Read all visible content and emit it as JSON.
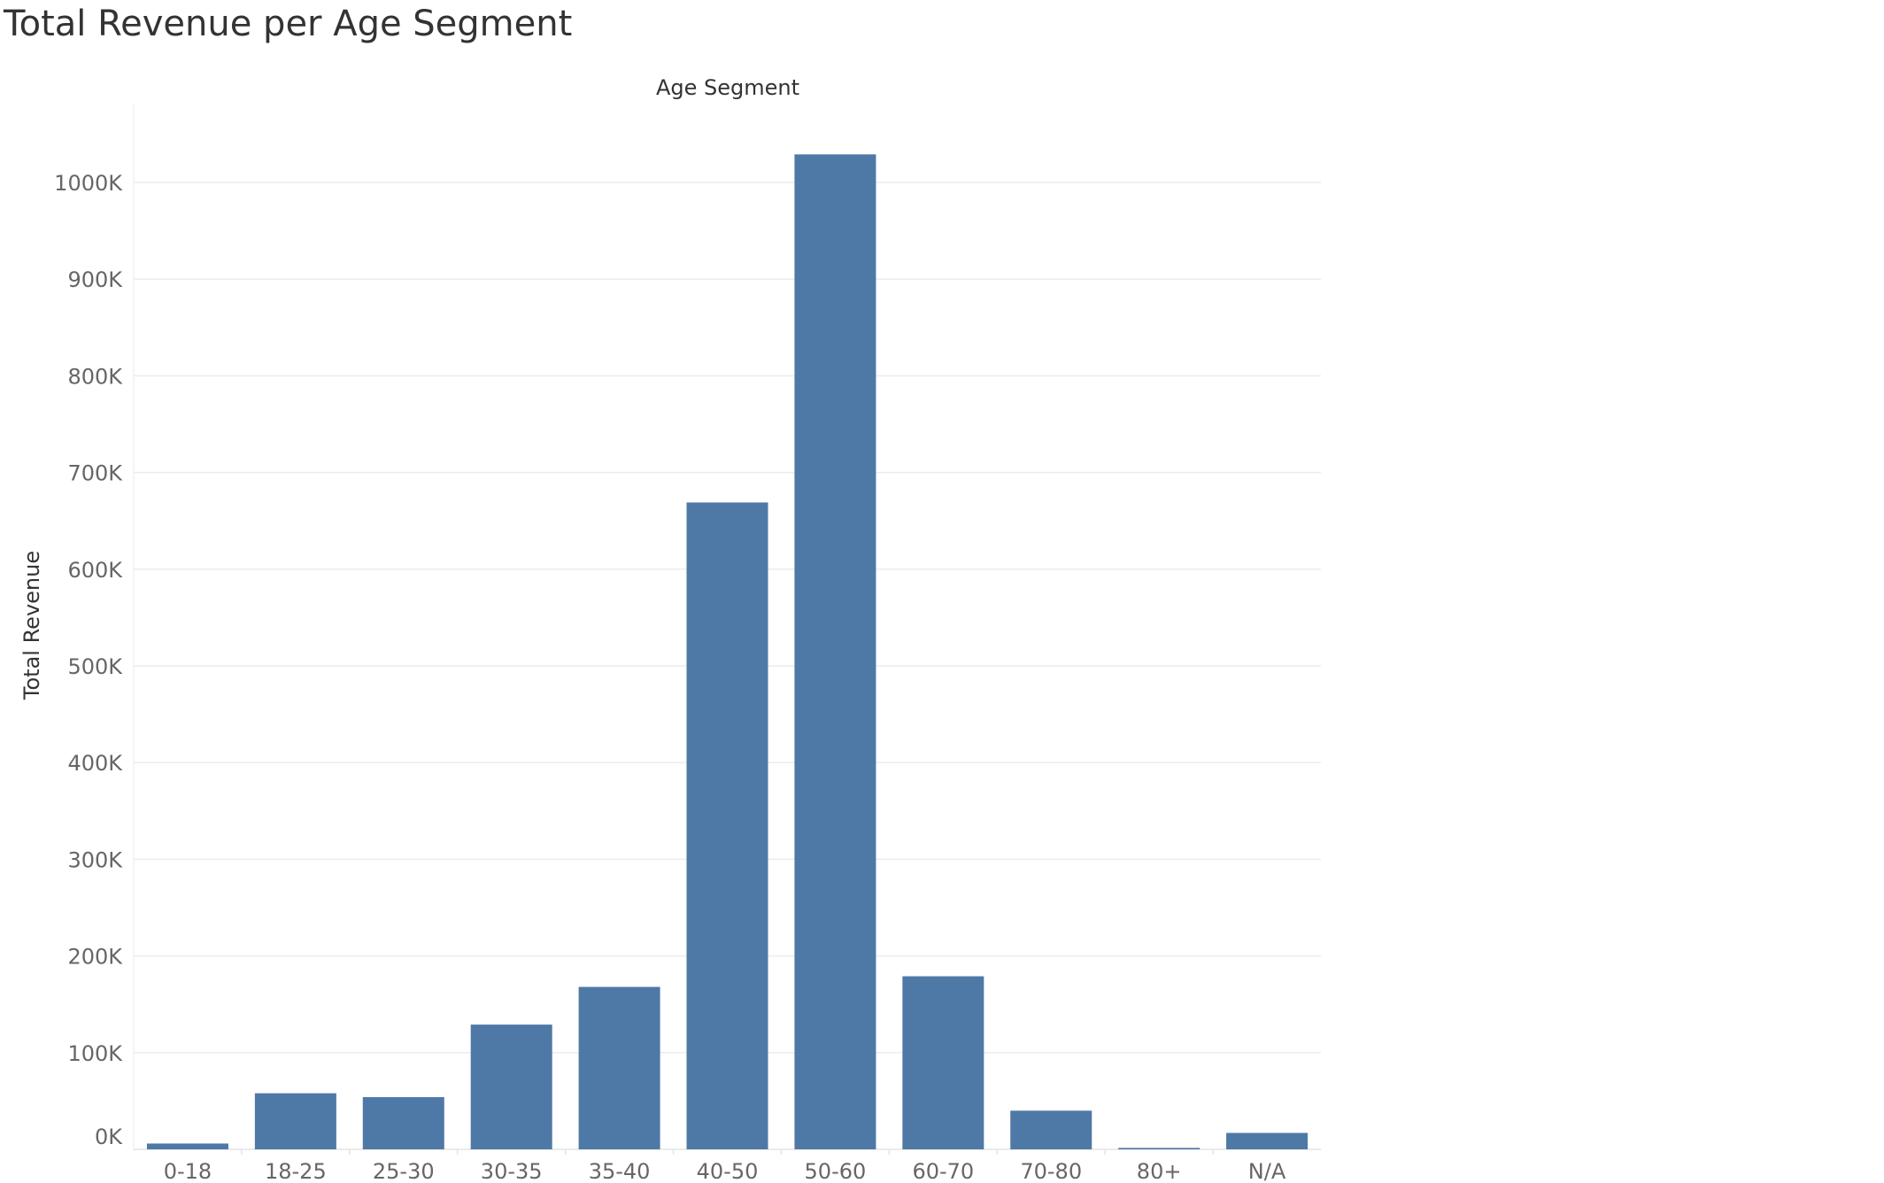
{
  "chart_data": {
    "type": "bar",
    "title": "Total Revenue per Age Segment",
    "xlabel": "Age Segment",
    "ylabel": "Total Revenue",
    "categories": [
      "0-18",
      "18-25",
      "25-30",
      "30-35",
      "35-40",
      "40-50",
      "50-60",
      "60-70",
      "70-80",
      "80+",
      "N/A"
    ],
    "values": [
      6000,
      58000,
      54000,
      129000,
      168000,
      669000,
      1029000,
      179000,
      40000,
      1500,
      17000
    ],
    "ylim": [
      0,
      1030000
    ],
    "yticks": [
      0,
      100000,
      200000,
      300000,
      400000,
      500000,
      600000,
      700000,
      800000,
      900000,
      1000000
    ],
    "ytick_labels": [
      "0K",
      "100K",
      "200K",
      "300K",
      "400K",
      "500K",
      "600K",
      "700K",
      "800K",
      "900K",
      "1000K"
    ],
    "grid": true,
    "bar_color": "#4e79a7"
  }
}
